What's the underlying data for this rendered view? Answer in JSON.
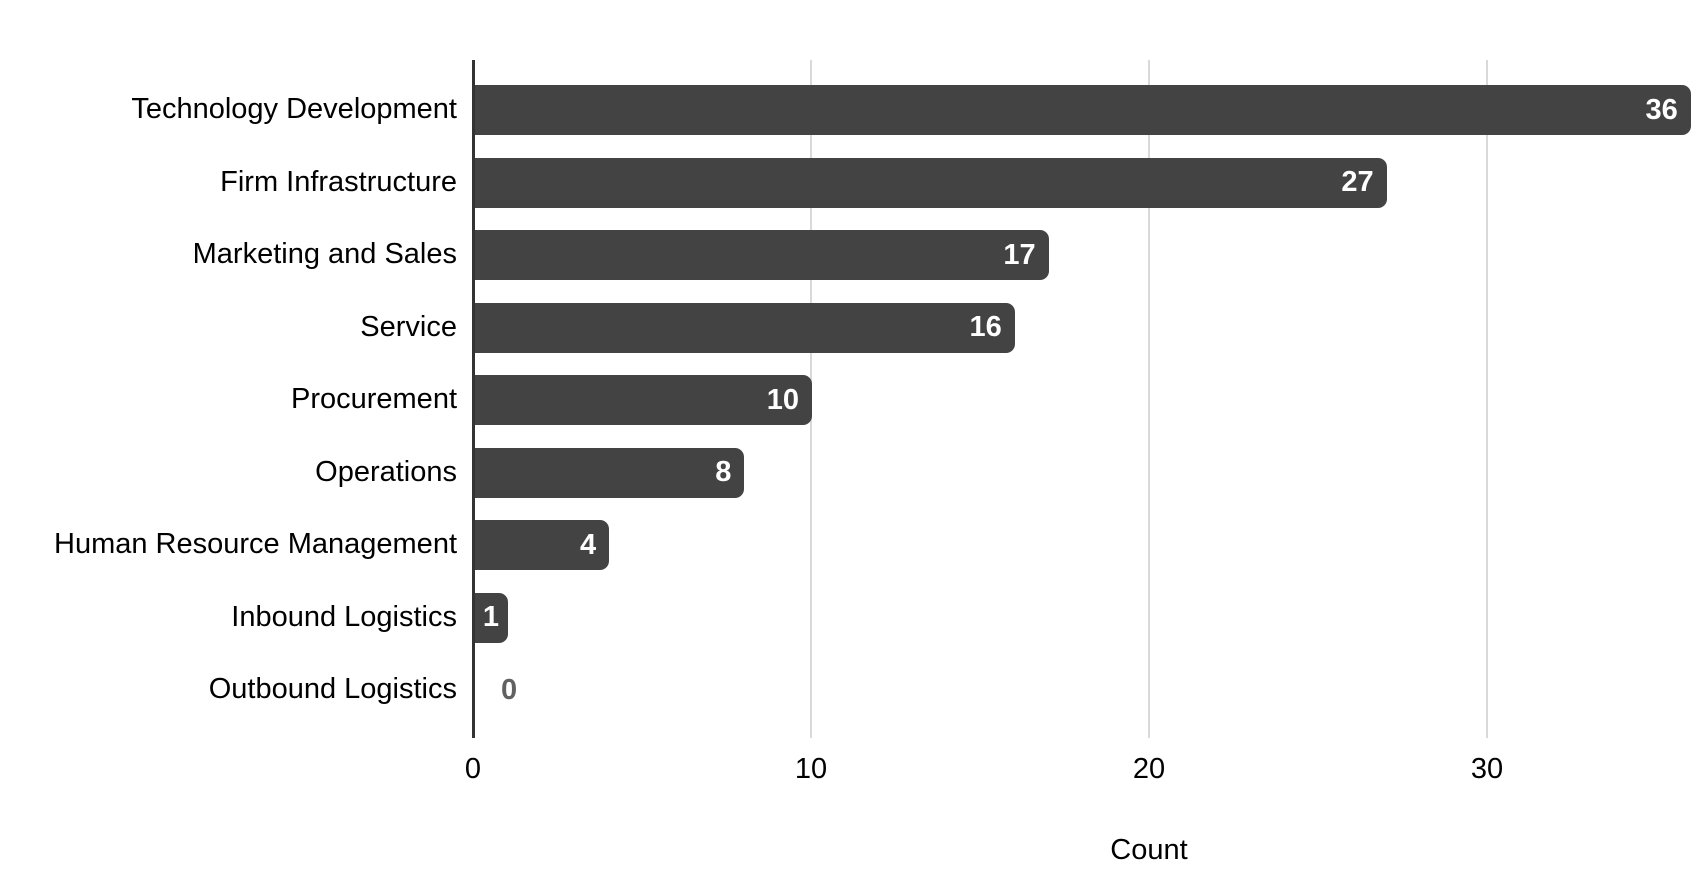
{
  "chart_data": {
    "type": "bar",
    "orientation": "horizontal",
    "title": "",
    "xlabel": "Count",
    "ylabel": "",
    "categories": [
      "Technology Development",
      "Firm Infrastructure",
      "Marketing and Sales",
      "Service",
      "Procurement",
      "Operations",
      "Human Resource Management",
      "Inbound Logistics",
      "Outbound Logistics"
    ],
    "values": [
      36,
      27,
      17,
      16,
      10,
      8,
      4,
      1,
      0
    ],
    "x_ticks": [
      0,
      10,
      20,
      30
    ],
    "xlim": [
      0,
      36.4
    ],
    "grid": "vertical-gridlines",
    "legend": "none",
    "colors": {
      "bar": "#434343",
      "value_label_inside": "#ffffff",
      "value_label_outside": "#616161",
      "category_label": "#000000",
      "tick_label": "#000000",
      "axis_title": "#000000",
      "axis_line": "#333333",
      "gridline": "#d9d9d9",
      "background": "#ffffff"
    }
  }
}
